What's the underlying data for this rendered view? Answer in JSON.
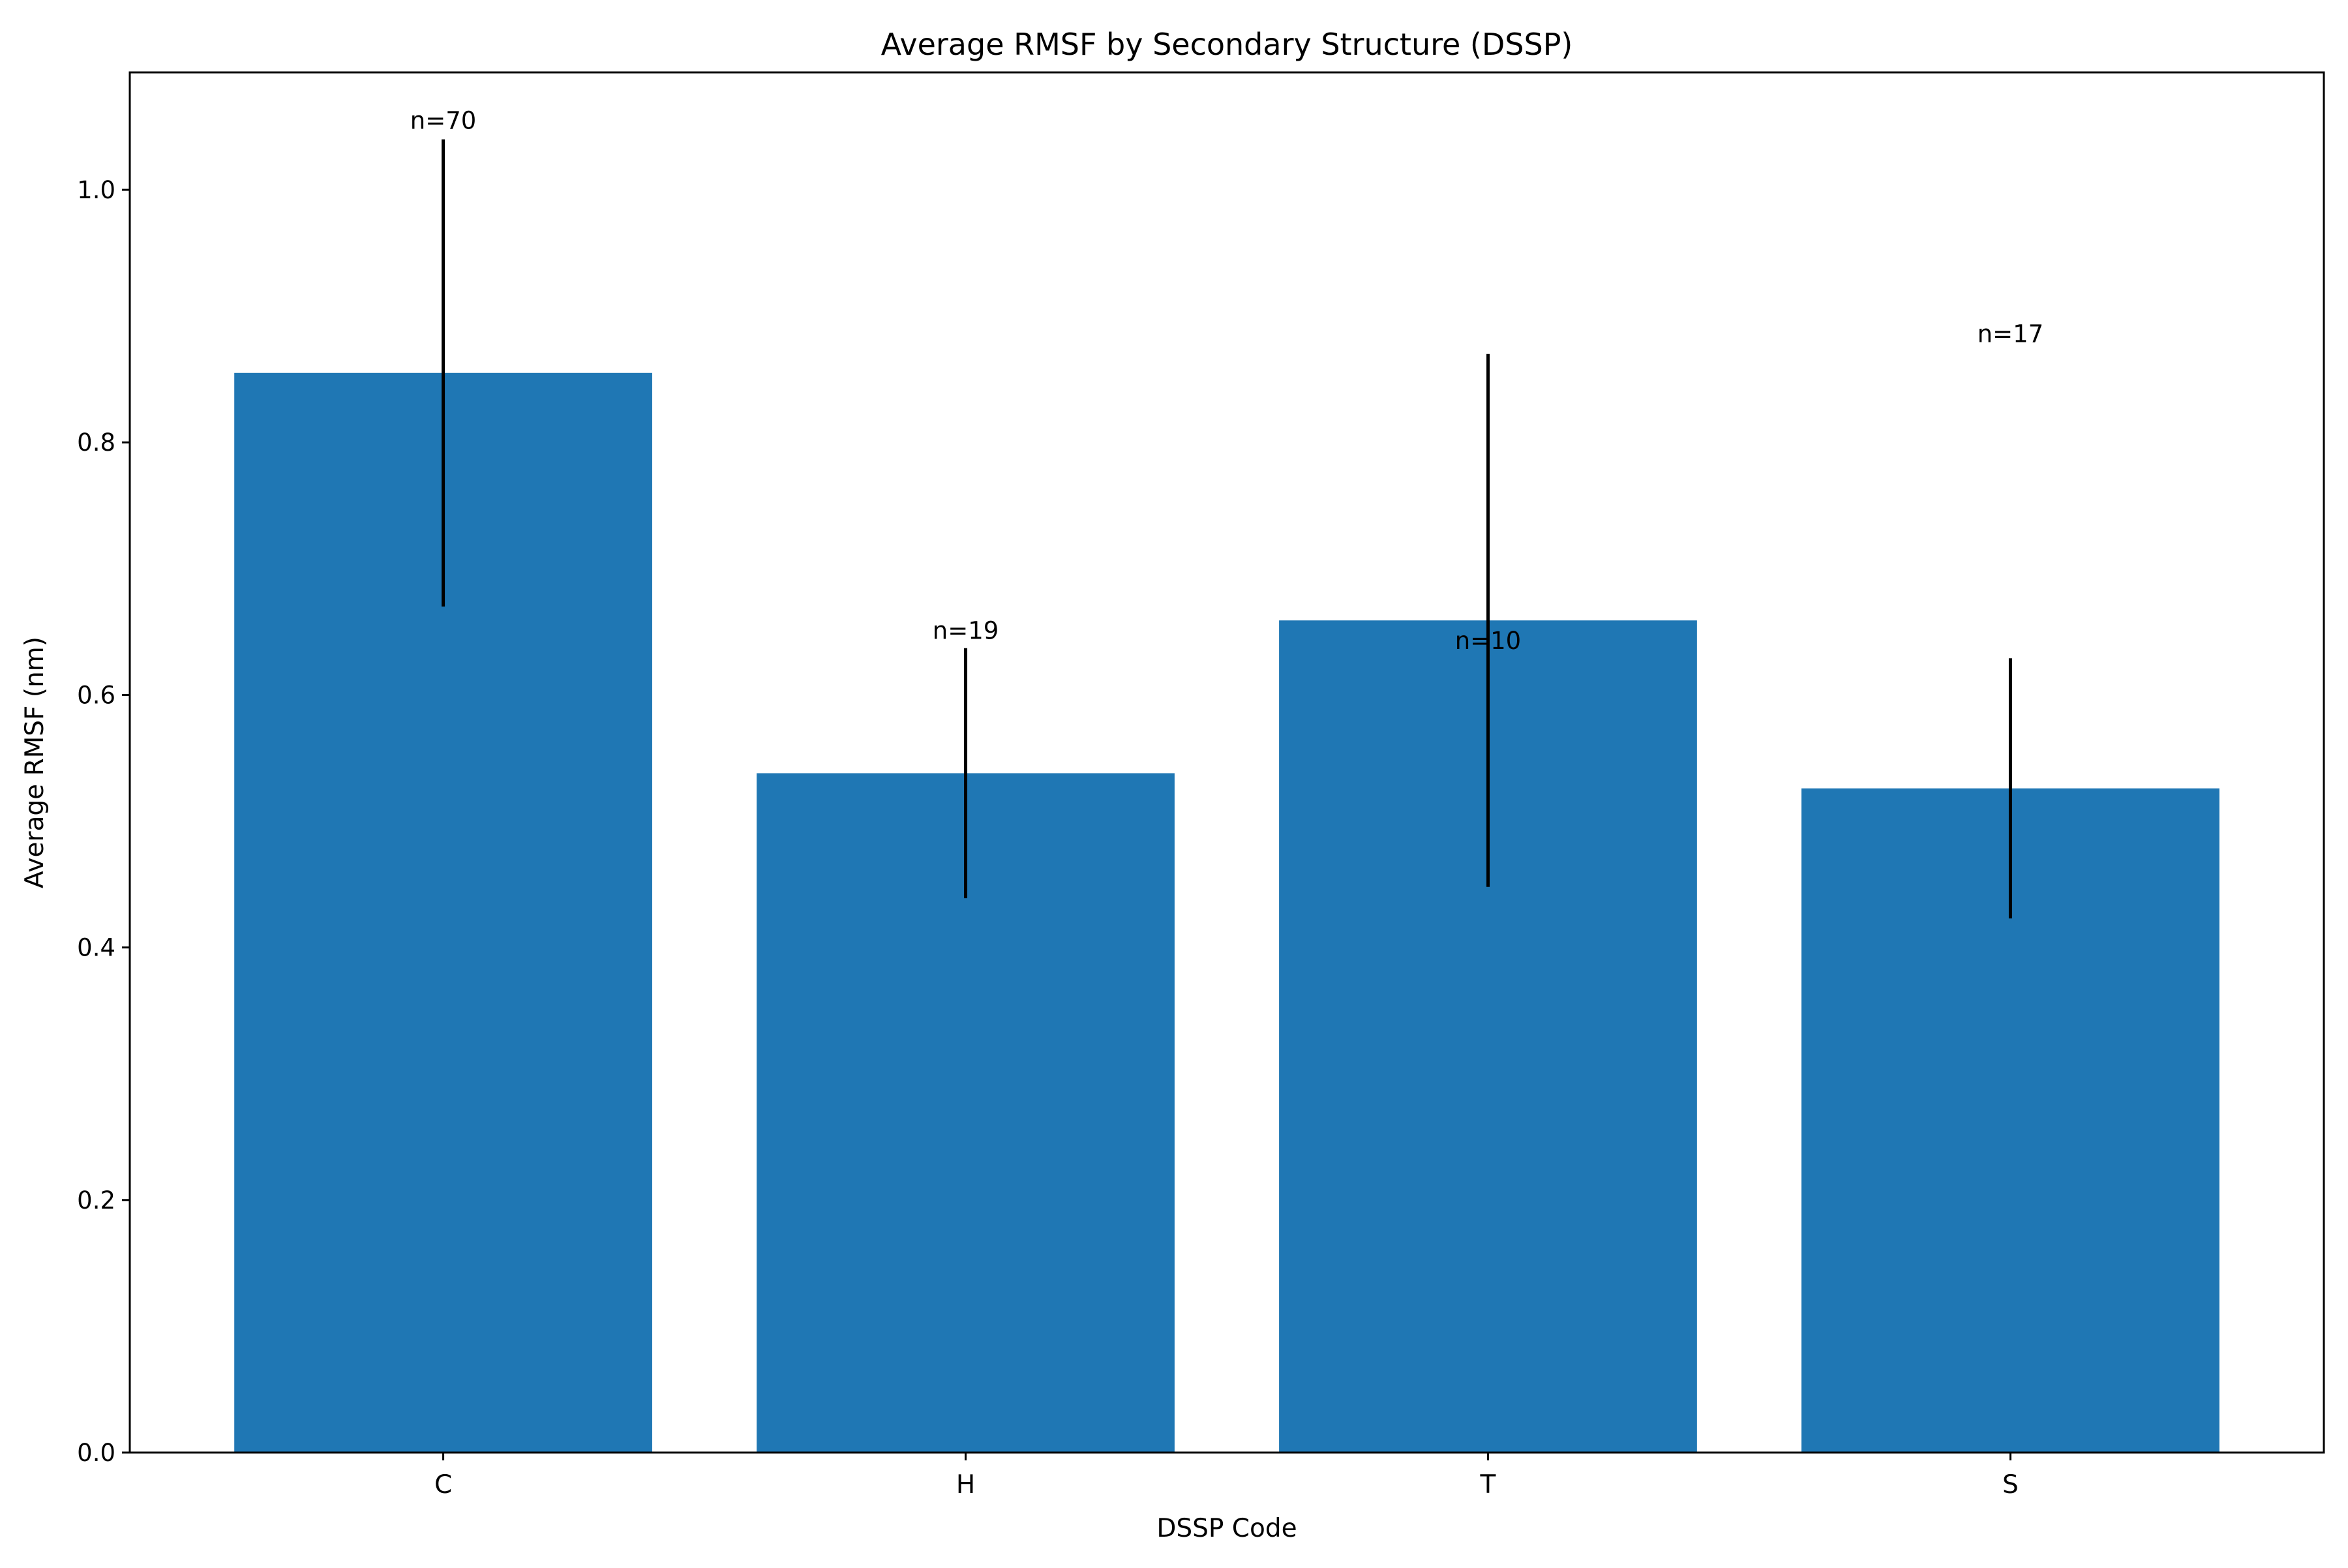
{
  "chart_data": {
    "type": "bar",
    "title": "Average RMSF by Secondary Structure (DSSP)",
    "xlabel": "DSSP Code",
    "ylabel": "Average RMSF (nm)",
    "categories": [
      "C",
      "H",
      "T",
      "S"
    ],
    "values": [
      0.855,
      0.538,
      0.659,
      0.526
    ],
    "error": [
      0.185,
      0.099,
      0.211,
      0.103
    ],
    "annotations": [
      {
        "text": "n=70",
        "value": 1.055
      },
      {
        "text": "n=19",
        "value": 0.651
      },
      {
        "text": "n=10",
        "value": 0.643
      },
      {
        "text": "n=17",
        "value": 0.886
      }
    ],
    "ylim": [
      0,
      1.093
    ],
    "yticks": [
      0.0,
      0.2,
      0.4,
      0.6,
      0.8,
      1.0
    ],
    "ytick_labels": [
      "0.0",
      "0.2",
      "0.4",
      "0.6",
      "0.8",
      "1.0"
    ],
    "grid": false,
    "bar_color": "#1f77b4",
    "error_color": "#000000"
  }
}
